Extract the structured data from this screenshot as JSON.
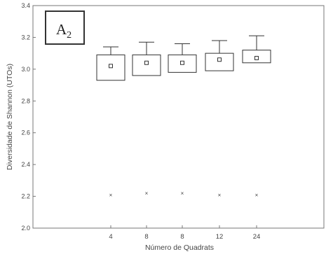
{
  "chart_data": {
    "type": "box",
    "panel_label": {
      "main": "A",
      "sub": "2"
    },
    "xlabel": "Número de Quadrats",
    "ylabel": "Diversidade de Shannon (UTOs)",
    "ylim": [
      2.0,
      3.4
    ],
    "yticks": [
      "2.0",
      "2.2",
      "2.4",
      "2.6",
      "2.8",
      "3.0",
      "3.2",
      "3.4"
    ],
    "categories": [
      "4",
      "8",
      "8",
      "12",
      "24"
    ],
    "boxes": [
      {
        "category": "4",
        "median": 3.02,
        "q1": 2.93,
        "q3": 3.09,
        "whisker_high": 3.14,
        "outlier": 2.21
      },
      {
        "category": "8",
        "median": 3.04,
        "q1": 2.96,
        "q3": 3.09,
        "whisker_high": 3.17,
        "outlier": 2.22
      },
      {
        "category": "8",
        "median": 3.04,
        "q1": 2.98,
        "q3": 3.09,
        "whisker_high": 3.16,
        "outlier": 2.22
      },
      {
        "category": "12",
        "median": 3.06,
        "q1": 2.99,
        "q3": 3.1,
        "whisker_high": 3.18,
        "outlier": 2.21
      },
      {
        "category": "24",
        "median": 3.07,
        "q1": 3.04,
        "q3": 3.12,
        "whisker_high": 3.21,
        "outlier": 2.21
      }
    ],
    "grid": false,
    "legend": "none"
  }
}
